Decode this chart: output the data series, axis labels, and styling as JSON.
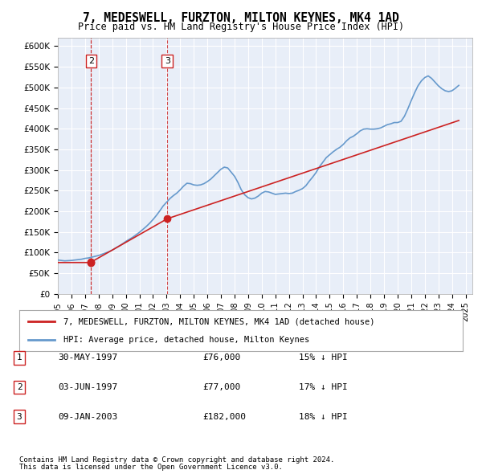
{
  "title": "7, MEDESWELL, FURZTON, MILTON KEYNES, MK4 1AD",
  "subtitle": "Price paid vs. HM Land Registry's House Price Index (HPI)",
  "ylabel": "",
  "background_color": "#e8eef8",
  "plot_bg_color": "#e8eef8",
  "ylim": [
    0,
    620000
  ],
  "yticks": [
    0,
    50000,
    100000,
    150000,
    200000,
    250000,
    300000,
    350000,
    400000,
    450000,
    500000,
    550000,
    600000
  ],
  "ytick_labels": [
    "£0",
    "£50K",
    "£100K",
    "£150K",
    "£200K",
    "£250K",
    "£300K",
    "£350K",
    "£400K",
    "£450K",
    "£500K",
    "£550K",
    "£600K"
  ],
  "xlim_start": 1995.0,
  "xlim_end": 2025.5,
  "xticks": [
    1995,
    1996,
    1997,
    1998,
    1999,
    2000,
    2001,
    2002,
    2003,
    2004,
    2005,
    2006,
    2007,
    2008,
    2009,
    2010,
    2011,
    2012,
    2013,
    2014,
    2015,
    2016,
    2017,
    2018,
    2019,
    2020,
    2021,
    2022,
    2023,
    2024,
    2025
  ],
  "hpi_color": "#6699cc",
  "price_color": "#cc2222",
  "marker_color": "#cc2222",
  "vline_color": "#cc2222",
  "legend_line1": "7, MEDESWELL, FURZTON, MILTON KEYNES, MK4 1AD (detached house)",
  "legend_line2": "HPI: Average price, detached house, Milton Keynes",
  "sales": [
    {
      "label": "1",
      "date": "30-MAY-1997",
      "price": "£76,000",
      "hpi": "15% ↓ HPI",
      "year": 1997.4,
      "value": 76000
    },
    {
      "label": "2",
      "date": "03-JUN-1997",
      "price": "£77,000",
      "hpi": "17% ↓ HPI",
      "year": 1997.45,
      "value": 77000
    },
    {
      "label": "3",
      "date": "09-JAN-2003",
      "price": "£182,000",
      "hpi": "18% ↓ HPI",
      "year": 2003.05,
      "value": 182000
    }
  ],
  "footnote1": "Contains HM Land Registry data © Crown copyright and database right 2024.",
  "footnote2": "This data is licensed under the Open Government Licence v3.0.",
  "hpi_data_x": [
    1995.0,
    1995.25,
    1995.5,
    1995.75,
    1996.0,
    1996.25,
    1996.5,
    1996.75,
    1997.0,
    1997.25,
    1997.5,
    1997.75,
    1998.0,
    1998.25,
    1998.5,
    1998.75,
    1999.0,
    1999.25,
    1999.5,
    1999.75,
    2000.0,
    2000.25,
    2000.5,
    2000.75,
    2001.0,
    2001.25,
    2001.5,
    2001.75,
    2002.0,
    2002.25,
    2002.5,
    2002.75,
    2003.0,
    2003.25,
    2003.5,
    2003.75,
    2004.0,
    2004.25,
    2004.5,
    2004.75,
    2005.0,
    2005.25,
    2005.5,
    2005.75,
    2006.0,
    2006.25,
    2006.5,
    2006.75,
    2007.0,
    2007.25,
    2007.5,
    2007.75,
    2008.0,
    2008.25,
    2008.5,
    2008.75,
    2009.0,
    2009.25,
    2009.5,
    2009.75,
    2010.0,
    2010.25,
    2010.5,
    2010.75,
    2011.0,
    2011.25,
    2011.5,
    2011.75,
    2012.0,
    2012.25,
    2012.5,
    2012.75,
    2013.0,
    2013.25,
    2013.5,
    2013.75,
    2014.0,
    2014.25,
    2014.5,
    2014.75,
    2015.0,
    2015.25,
    2015.5,
    2015.75,
    2016.0,
    2016.25,
    2016.5,
    2016.75,
    2017.0,
    2017.25,
    2017.5,
    2017.75,
    2018.0,
    2018.25,
    2018.5,
    2018.75,
    2019.0,
    2019.25,
    2019.5,
    2019.75,
    2020.0,
    2020.25,
    2020.5,
    2020.75,
    2021.0,
    2021.25,
    2021.5,
    2021.75,
    2022.0,
    2022.25,
    2022.5,
    2022.75,
    2023.0,
    2023.25,
    2023.5,
    2023.75,
    2024.0,
    2024.25,
    2024.5
  ],
  "hpi_data_y": [
    82000,
    81000,
    80000,
    80500,
    81000,
    82000,
    83000,
    84000,
    86000,
    87000,
    89000,
    91000,
    93000,
    96000,
    99000,
    102000,
    106000,
    111000,
    116000,
    121000,
    127000,
    132000,
    137000,
    143000,
    149000,
    156000,
    163000,
    171000,
    180000,
    190000,
    201000,
    213000,
    222000,
    231000,
    238000,
    244000,
    252000,
    261000,
    268000,
    267000,
    264000,
    263000,
    264000,
    267000,
    272000,
    278000,
    286000,
    294000,
    302000,
    307000,
    305000,
    295000,
    285000,
    270000,
    252000,
    240000,
    233000,
    230000,
    232000,
    237000,
    244000,
    248000,
    247000,
    244000,
    241000,
    242000,
    243000,
    244000,
    243000,
    244000,
    248000,
    251000,
    255000,
    262000,
    273000,
    283000,
    294000,
    308000,
    319000,
    330000,
    337000,
    344000,
    350000,
    355000,
    362000,
    371000,
    378000,
    382000,
    388000,
    395000,
    399000,
    400000,
    399000,
    399000,
    400000,
    402000,
    406000,
    410000,
    412000,
    415000,
    415000,
    418000,
    430000,
    448000,
    468000,
    487000,
    504000,
    516000,
    524000,
    528000,
    522000,
    513000,
    504000,
    497000,
    492000,
    490000,
    492000,
    498000,
    505000
  ],
  "price_data_x": [
    1995.0,
    1997.4,
    1997.45,
    2003.05,
    2024.5
  ],
  "price_data_y": [
    76000,
    76000,
    77000,
    182000,
    420000
  ]
}
